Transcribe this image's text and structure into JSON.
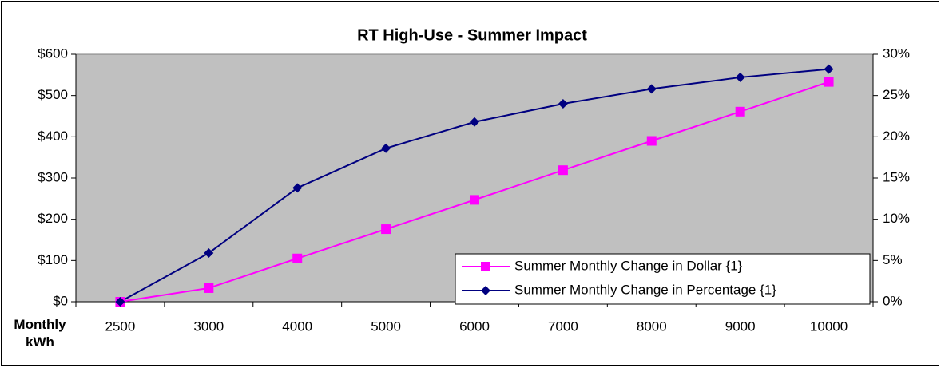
{
  "chart_data": {
    "type": "line",
    "title": "RT High-Use - Summer Impact",
    "x_label": "Monthly kWh",
    "categories": [
      "2500",
      "3000",
      "4000",
      "5000",
      "6000",
      "7000",
      "8000",
      "9000",
      "10000"
    ],
    "series": [
      {
        "name": "Summer Monthly Change in Dollar {1}",
        "color": "#ff00ff",
        "marker": "square",
        "values": [
          0,
          33,
          105,
          176,
          247,
          319,
          390,
          461,
          533
        ]
      },
      {
        "name": "Summer Monthly Change in Percentage {1}",
        "color": "#000080",
        "marker": "diamond",
        "axis": "y2",
        "values": [
          0,
          5.9,
          13.8,
          18.6,
          21.8,
          24.0,
          25.8,
          27.2,
          28.2
        ]
      }
    ],
    "ylim": [
      0,
      600
    ],
    "yticks": [
      {
        "value": 0,
        "label": "$0"
      },
      {
        "value": 100,
        "label": "$100"
      },
      {
        "value": 200,
        "label": "$200"
      },
      {
        "value": 300,
        "label": "$300"
      },
      {
        "value": 400,
        "label": "$400"
      },
      {
        "value": 500,
        "label": "$500"
      },
      {
        "value": 600,
        "label": "$600"
      }
    ],
    "y2lim": [
      0,
      30
    ],
    "y2ticks": [
      {
        "value": 0,
        "label": "0%"
      },
      {
        "value": 5,
        "label": "5%"
      },
      {
        "value": 10,
        "label": "10%"
      },
      {
        "value": 15,
        "label": "15%"
      },
      {
        "value": 20,
        "label": "20%"
      },
      {
        "value": 25,
        "label": "25%"
      },
      {
        "value": 30,
        "label": "30%"
      }
    ],
    "plot_background": "#c0c0c0",
    "legend": "lower right"
  }
}
